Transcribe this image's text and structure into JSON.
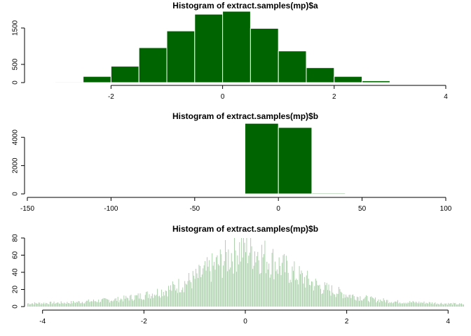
{
  "colors": {
    "fill": "#006400",
    "edge": "#ffffff",
    "bar_dense": "#a5cda5",
    "axis": "#000000"
  },
  "chart_data": [
    {
      "type": "bar",
      "title": "Histogram of extract.samples(mp)$a",
      "xlabel": "",
      "ylabel": "",
      "xlim": [
        -3.5,
        4
      ],
      "ylim": [
        0,
        2000
      ],
      "x_ticks": [
        -2,
        0,
        2,
        4
      ],
      "y_ticks": [
        0,
        500,
        1500
      ],
      "bin_edges": [
        -3,
        -2.5,
        -2,
        -1.5,
        -1,
        -0.5,
        0,
        0.5,
        1,
        1.5,
        2,
        2.5,
        3
      ],
      "values": [
        20,
        170,
        450,
        960,
        1420,
        1880,
        1960,
        1490,
        870,
        410,
        170,
        50
      ],
      "grid": false,
      "legend": "none"
    },
    {
      "type": "bar",
      "title": "Histogram of extract.samples(mp)$b",
      "xlabel": "",
      "ylabel": "",
      "xlim": [
        -150,
        100
      ],
      "ylim": [
        0,
        5000
      ],
      "x_ticks": [
        -150,
        -100,
        -50,
        0,
        50,
        100
      ],
      "y_ticks": [
        0,
        2000,
        4000
      ],
      "bin_edges": [
        -20,
        0,
        20,
        40
      ],
      "values": [
        4990,
        4700,
        60
      ],
      "grid": false,
      "legend": "none"
    },
    {
      "type": "bar",
      "title": "Histogram of extract.samples(mp)$b",
      "xlabel": "",
      "ylabel": "",
      "xlim": [
        -4.3,
        4.3
      ],
      "ylim": [
        0,
        80
      ],
      "x_ticks": [
        -4,
        -2,
        0,
        2,
        4
      ],
      "y_ticks": [
        0,
        20,
        40,
        60,
        80
      ],
      "bin_width": 0.02,
      "envelope": [
        [
          -4.3,
          4
        ],
        [
          -3.5,
          5
        ],
        [
          -3,
          7
        ],
        [
          -2.5,
          9
        ],
        [
          -2,
          14
        ],
        [
          -1.5,
          22
        ],
        [
          -1,
          35
        ],
        [
          -0.5,
          55
        ],
        [
          -0.2,
          70
        ],
        [
          0,
          75
        ],
        [
          0.2,
          70
        ],
        [
          0.5,
          58
        ],
        [
          1,
          40
        ],
        [
          1.5,
          24
        ],
        [
          2,
          15
        ],
        [
          2.5,
          9
        ],
        [
          3,
          6
        ],
        [
          3.5,
          5
        ],
        [
          4.3,
          3
        ]
      ],
      "grid": false,
      "legend": "none"
    }
  ]
}
